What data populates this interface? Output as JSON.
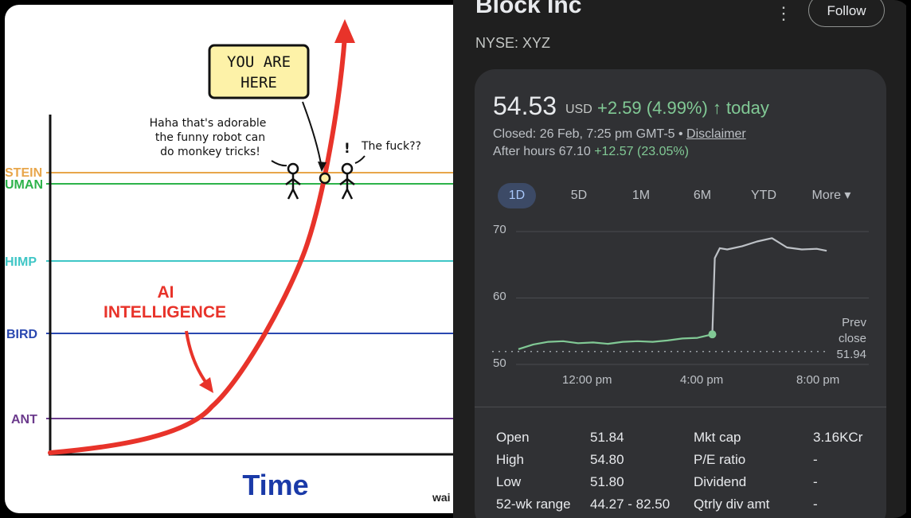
{
  "meme": {
    "labels": {
      "einstein": "STEIN",
      "human": "UMAN",
      "chimp": "HIMP",
      "bird": "BIRD",
      "ant": "ANT"
    },
    "line_colors": {
      "einstein": "#e8a64a",
      "human": "#2db34a",
      "chimp": "#3fc6c6",
      "bird": "#2a48b0",
      "ant": "#6b3a8c",
      "curve": "#e8332a"
    },
    "you_are_here": [
      "YOU ARE",
      "HERE"
    ],
    "speech_left": [
      "Haha that's adorable",
      "the funny robot can",
      "do monkey tricks!"
    ],
    "speech_right": "The fuck??",
    "exclaim": "!",
    "ai_label": [
      "AI",
      "INTELLIGENCE"
    ],
    "x_axis": "Time",
    "watermark": "wai"
  },
  "stock": {
    "company": "Block Inc",
    "kebab": "⋮",
    "follow": "Follow",
    "ticker": "NYSE: XYZ",
    "price": "54.53",
    "currency": "USD",
    "change": "+2.59 (4.99%) ↑ today",
    "closed": "Closed: 26 Feb, 7:25 pm GMT-5 • ",
    "disclaimer": "Disclaimer",
    "after_label": "After hours 67.10 ",
    "after_change": "+12.57 (23.05%)",
    "ranges": [
      "1D",
      "5D",
      "1M",
      "6M",
      "YTD",
      "More ▾"
    ],
    "active_range": "1D",
    "prev_close_label_1": "Prev",
    "prev_close_label_2": "close",
    "prev_close_value": "51.94",
    "stats_left": [
      {
        "label": "Open",
        "value": "51.84"
      },
      {
        "label": "High",
        "value": "54.80"
      },
      {
        "label": "Low",
        "value": "51.80"
      },
      {
        "label": "52-wk range",
        "value": "44.27 - 82.50"
      }
    ],
    "stats_right": [
      {
        "label": "Mkt cap",
        "value": "3.16KCr"
      },
      {
        "label": "P/E ratio",
        "value": "-"
      },
      {
        "label": "Dividend",
        "value": "-"
      },
      {
        "label": "Qtrly div amt",
        "value": "-"
      }
    ],
    "colors": {
      "up": "#81c995",
      "after_hours_line": "#bdc1c6",
      "active_tab_bg": "#3c4a66"
    }
  },
  "chart_data": {
    "type": "line",
    "xlabel": "",
    "ylabel": "",
    "y_ticks": [
      50,
      60,
      70
    ],
    "ylim": [
      50,
      70
    ],
    "x_ticks": [
      "12:00 pm",
      "4:00 pm",
      "8:00 pm"
    ],
    "prev_close": 51.94,
    "series": [
      {
        "x": [
          "9:30",
          "10:00",
          "10:30",
          "11:00",
          "11:30",
          "12:00",
          "12:30",
          "13:00",
          "13:30",
          "14:00",
          "14:30",
          "15:00",
          "15:30",
          "16:00"
        ],
        "values": [
          52.3,
          53.0,
          53.4,
          53.5,
          53.2,
          53.3,
          53.1,
          53.4,
          53.5,
          53.4,
          53.6,
          53.9,
          54.0,
          54.53
        ]
      },
      {
        "x": [
          "16:00",
          "16:05",
          "16:15",
          "16:30",
          "17:00",
          "17:30",
          "18:00",
          "18:30",
          "19:00",
          "19:30",
          "19:50"
        ],
        "values": [
          54.53,
          66.0,
          67.5,
          67.3,
          67.8,
          68.5,
          69.0,
          67.6,
          67.3,
          67.4,
          67.1
        ]
      }
    ]
  }
}
